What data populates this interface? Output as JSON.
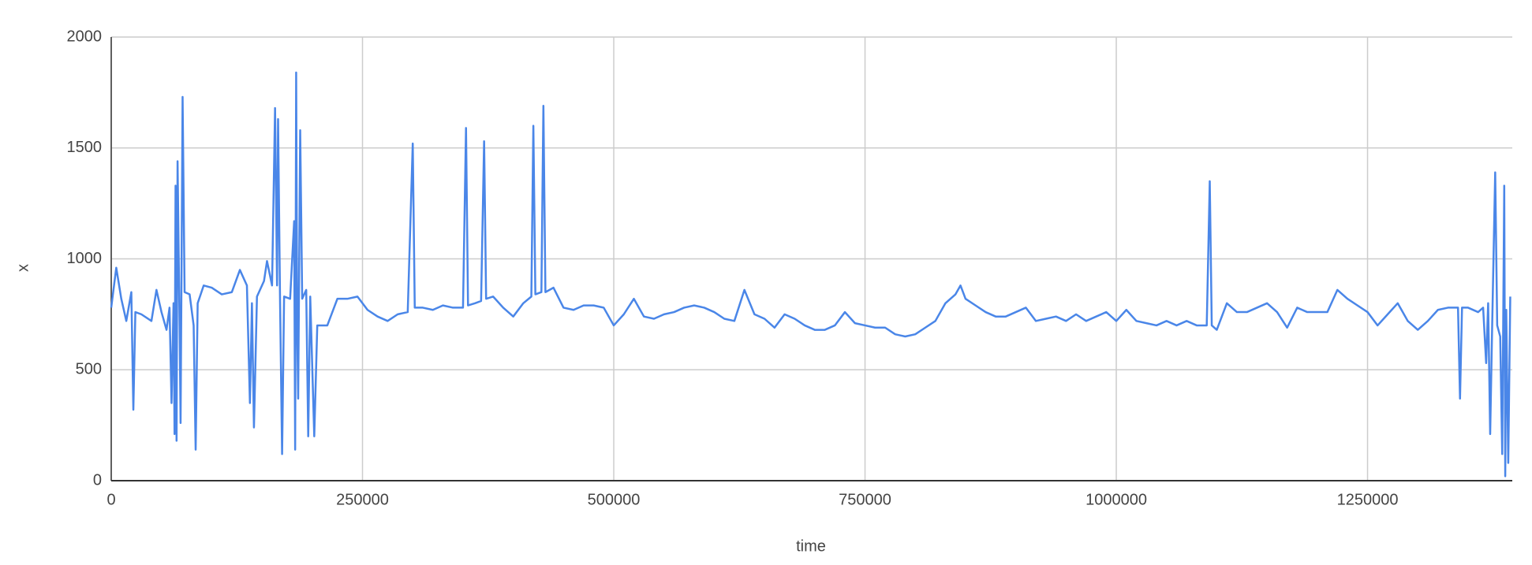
{
  "chart_data": {
    "type": "line",
    "x_label": "time",
    "y_label": "x",
    "x": [
      0,
      5000,
      10000,
      15000,
      20000,
      22000,
      24000,
      30000,
      40000,
      45000,
      50000,
      55000,
      58000,
      60000,
      62000,
      63000,
      64000,
      65000,
      66000,
      68000,
      69000,
      71000,
      73000,
      78000,
      82000,
      84000,
      86000,
      92000,
      100000,
      110000,
      120000,
      128000,
      135000,
      138000,
      140000,
      142000,
      145000,
      152000,
      155000,
      160000,
      163000,
      165000,
      166000,
      168000,
      170000,
      172000,
      178000,
      182000,
      183000,
      184000,
      185000,
      186000,
      188000,
      190000,
      194000,
      196000,
      198000,
      202000,
      205000,
      215000,
      225000,
      235000,
      245000,
      255000,
      265000,
      275000,
      285000,
      295000,
      300000,
      302000,
      310000,
      320000,
      330000,
      340000,
      350000,
      353000,
      355000,
      362000,
      368000,
      371000,
      373000,
      380000,
      390000,
      400000,
      410000,
      418000,
      420000,
      422000,
      428000,
      430000,
      432000,
      440000,
      450000,
      460000,
      470000,
      480000,
      490000,
      500000,
      510000,
      520000,
      530000,
      540000,
      550000,
      560000,
      570000,
      580000,
      590000,
      600000,
      610000,
      620000,
      630000,
      640000,
      650000,
      660000,
      670000,
      680000,
      690000,
      700000,
      710000,
      720000,
      730000,
      740000,
      750000,
      760000,
      770000,
      780000,
      790000,
      800000,
      810000,
      820000,
      830000,
      840000,
      845000,
      850000,
      860000,
      870000,
      880000,
      890000,
      900000,
      910000,
      920000,
      930000,
      940000,
      950000,
      960000,
      970000,
      980000,
      990000,
      1000000,
      1010000,
      1020000,
      1030000,
      1040000,
      1050000,
      1060000,
      1070000,
      1080000,
      1090000,
      1093000,
      1095000,
      1100000,
      1110000,
      1120000,
      1130000,
      1140000,
      1150000,
      1160000,
      1170000,
      1180000,
      1190000,
      1200000,
      1210000,
      1220000,
      1230000,
      1240000,
      1250000,
      1260000,
      1270000,
      1280000,
      1290000,
      1300000,
      1310000,
      1320000,
      1330000,
      1340000,
      1342000,
      1344000,
      1350000,
      1360000,
      1365000,
      1368000,
      1370000,
      1372000,
      1374000,
      1377000,
      1379000,
      1382000,
      1384000,
      1386000,
      1387000,
      1388000,
      1390000,
      1392000
    ],
    "series": [
      {
        "color": "#4a86e8",
        "values": [
          780,
          960,
          820,
          720,
          850,
          320,
          760,
          750,
          720,
          860,
          760,
          680,
          780,
          350,
          800,
          210,
          1330,
          180,
          1440,
          700,
          260,
          1730,
          850,
          840,
          700,
          140,
          800,
          880,
          870,
          840,
          850,
          950,
          880,
          350,
          800,
          240,
          830,
          900,
          990,
          880,
          1680,
          880,
          1630,
          800,
          120,
          830,
          820,
          1170,
          140,
          1840,
          700,
          370,
          1580,
          820,
          860,
          200,
          830,
          200,
          700,
          700,
          820,
          820,
          830,
          770,
          740,
          720,
          750,
          760,
          1520,
          780,
          780,
          770,
          790,
          780,
          780,
          1590,
          790,
          800,
          810,
          1530,
          820,
          830,
          780,
          740,
          800,
          830,
          1600,
          840,
          850,
          1690,
          850,
          870,
          780,
          770,
          790,
          790,
          780,
          700,
          750,
          820,
          740,
          730,
          750,
          760,
          780,
          790,
          780,
          760,
          730,
          720,
          860,
          750,
          730,
          690,
          750,
          730,
          700,
          680,
          680,
          700,
          760,
          710,
          700,
          690,
          690,
          660,
          650,
          660,
          690,
          720,
          800,
          840,
          880,
          820,
          790,
          760,
          740,
          740,
          760,
          780,
          720,
          730,
          740,
          720,
          750,
          720,
          740,
          760,
          720,
          770,
          720,
          710,
          700,
          720,
          700,
          720,
          700,
          700,
          1350,
          700,
          680,
          800,
          760,
          760,
          780,
          800,
          760,
          690,
          780,
          760,
          760,
          760,
          860,
          820,
          790,
          760,
          700,
          750,
          800,
          720,
          680,
          720,
          770,
          780,
          780,
          370,
          780,
          780,
          760,
          780,
          530,
          800,
          210,
          700,
          1390,
          700,
          650,
          120,
          1330,
          20,
          770,
          80,
          830
        ]
      }
    ],
    "xlim": [
      0,
      1394000
    ],
    "ylim": [
      0,
      2000
    ],
    "xticks": [
      0,
      250000,
      500000,
      750000,
      1000000,
      1250000
    ],
    "yticks": [
      0,
      500,
      1000,
      1500,
      2000
    ],
    "grid": true
  }
}
